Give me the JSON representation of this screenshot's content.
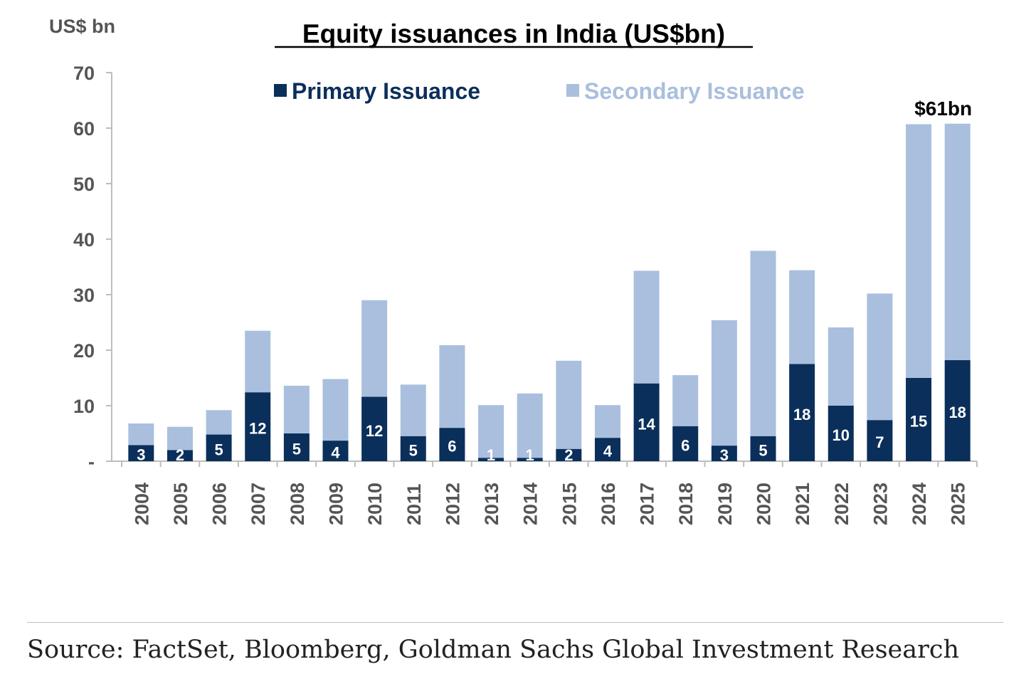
{
  "chart_data": {
    "type": "bar",
    "stacked": true,
    "title": "Equity issuances in India (US$bn)",
    "ylabel": "US$ bn",
    "xlabel": "",
    "ylim": [
      0,
      70
    ],
    "yticks": [
      0,
      10,
      20,
      30,
      40,
      50,
      60,
      70
    ],
    "ytick_labels": [
      "-",
      "10",
      "20",
      "30",
      "40",
      "50",
      "60",
      "70"
    ],
    "categories": [
      "2004",
      "2005",
      "2006",
      "2007",
      "2008",
      "2009",
      "2010",
      "2011",
      "2012",
      "2013",
      "2014",
      "2015",
      "2016",
      "2017",
      "2018",
      "2019",
      "2020",
      "2021",
      "2022",
      "2023",
      "2024",
      "2025"
    ],
    "series": [
      {
        "name": "Primary Issuance",
        "color": "#0b2f5b",
        "values": [
          2.9,
          2.0,
          4.8,
          12.4,
          5.0,
          3.7,
          11.6,
          4.5,
          6.0,
          0.6,
          0.6,
          2.2,
          4.2,
          14.0,
          6.3,
          2.8,
          4.5,
          17.5,
          10.0,
          7.4,
          15.0,
          18.2
        ],
        "labels": [
          "3",
          "2",
          "5",
          "12",
          "5",
          "4",
          "12",
          "5",
          "6",
          "1",
          "1",
          "2",
          "4",
          "14",
          "6",
          "3",
          "5",
          "18",
          "10",
          "7",
          "15",
          "18"
        ]
      },
      {
        "name": "Secondary Issuance",
        "color": "#a9bfdd",
        "values": [
          3.9,
          4.2,
          4.4,
          11.1,
          8.6,
          11.1,
          17.4,
          9.3,
          14.9,
          9.5,
          11.6,
          15.9,
          5.9,
          20.3,
          9.2,
          22.6,
          33.4,
          16.9,
          14.1,
          22.8,
          45.7,
          42.6
        ]
      }
    ],
    "annotations": [
      {
        "text": "$61bn",
        "category": "2025"
      }
    ],
    "legend_position": "top",
    "grid": false
  },
  "source": "Source: FactSet, Bloomberg, Goldman Sachs Global Investment Research"
}
